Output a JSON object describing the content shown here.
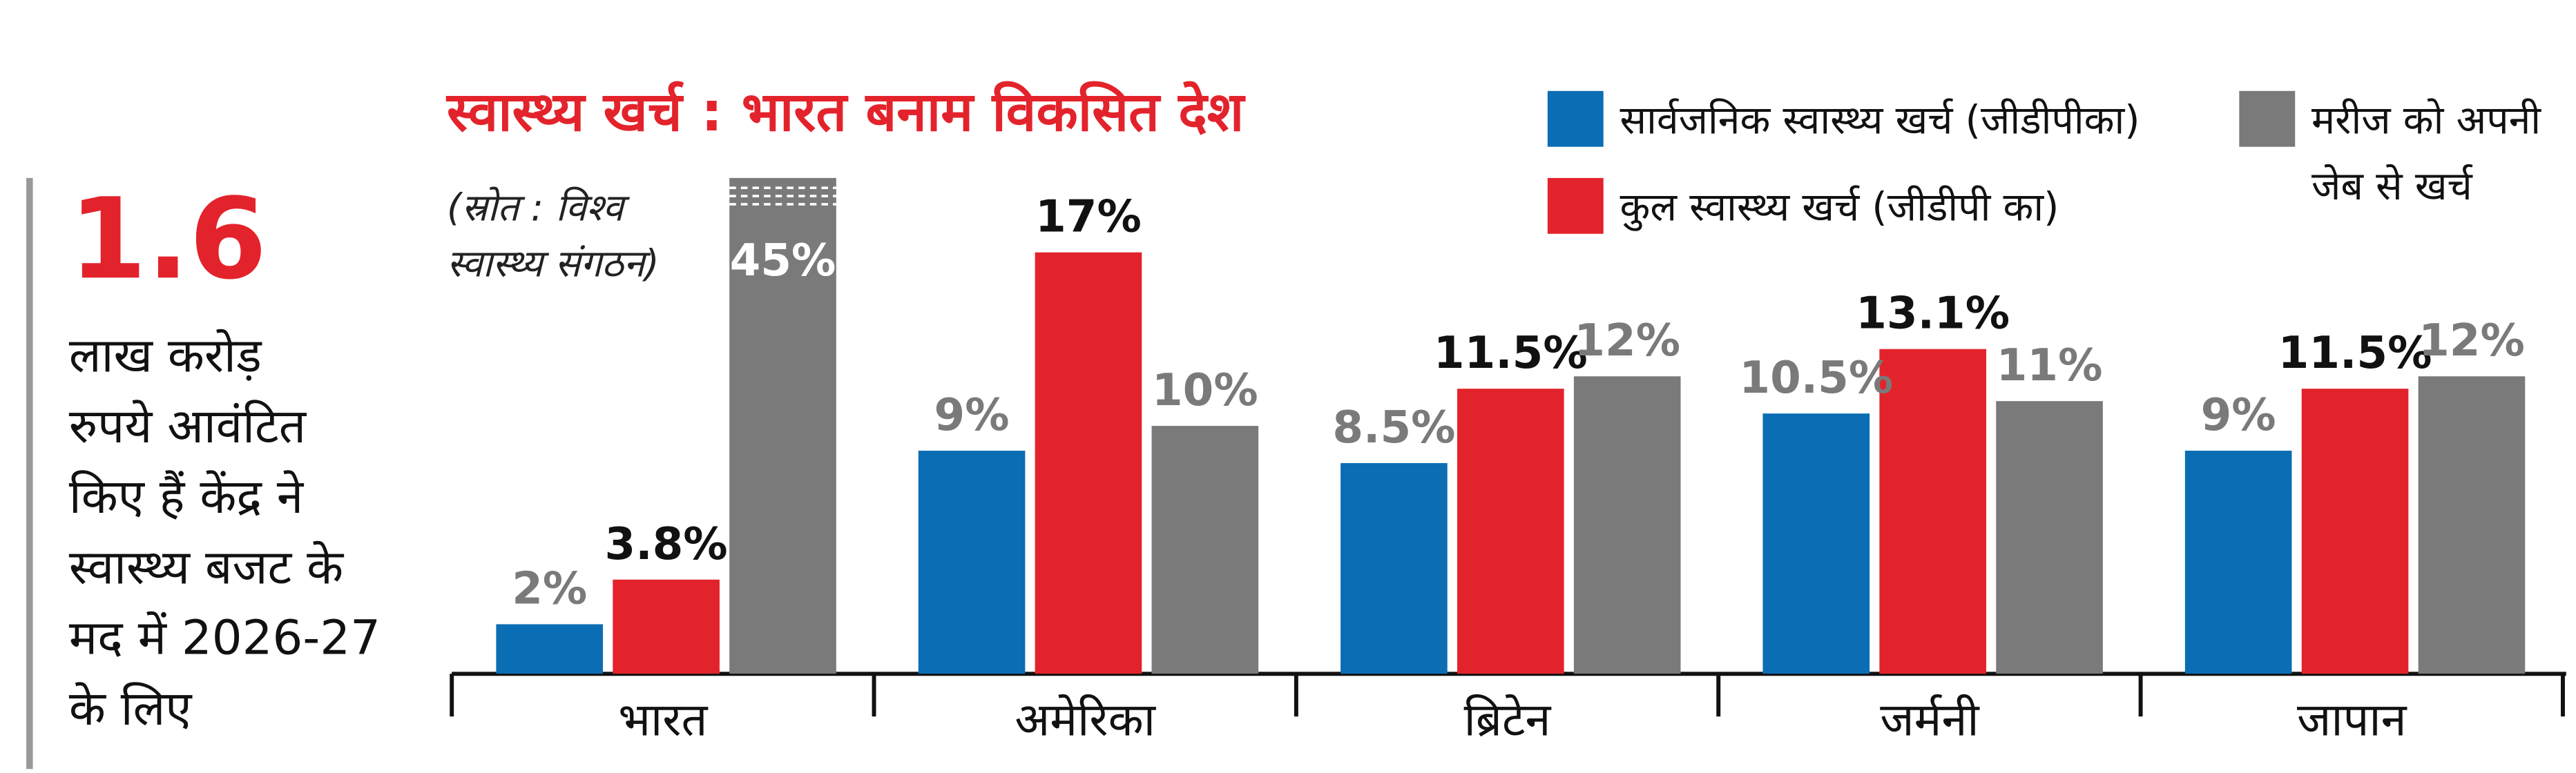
{
  "sidebar": {
    "figure": "1.6",
    "lines": [
      "लाख करोड़",
      "रुपये आवंटित",
      "किए हैं केंद्र ने",
      "स्वास्थ्य बजट के",
      "मद में 2026-27",
      "के लिए"
    ]
  },
  "chart_data": {
    "type": "bar",
    "title": "स्वास्थ्य खर्च : भारत बनाम विकसित देश",
    "source": "(स्रोत : विश्व स्वास्थ्य संगठन)",
    "categories": [
      "भारत",
      "अमेरिका",
      "ब्रिटेन",
      "जर्मनी",
      "जापान"
    ],
    "series": [
      {
        "name": "सार्वजनिक स्वास्थ्य खर्च (जीडीपीका)",
        "color": "#0b6db3",
        "values": [
          2,
          9,
          8.5,
          10.5,
          9
        ],
        "value_labels": [
          "2%",
          "9%",
          "8.5%",
          "10.5%",
          "9%"
        ]
      },
      {
        "name": "कुल स्वास्थ्य खर्च (जीडीपी का)",
        "color": "#e3232b",
        "values": [
          3.8,
          17,
          11.5,
          13.1,
          11.5
        ],
        "value_labels": [
          "3.8%",
          "17%",
          "11.5%",
          "13.1%",
          "11.5%"
        ]
      },
      {
        "name": "मरीज को अपनी जेब से खर्च",
        "color": "#7a7a7a",
        "values": [
          45,
          10,
          12,
          11,
          12
        ],
        "value_labels": [
          "45%",
          "10%",
          "12%",
          "11%",
          "12%"
        ]
      }
    ],
    "ylim": [
      0,
      20
    ]
  }
}
